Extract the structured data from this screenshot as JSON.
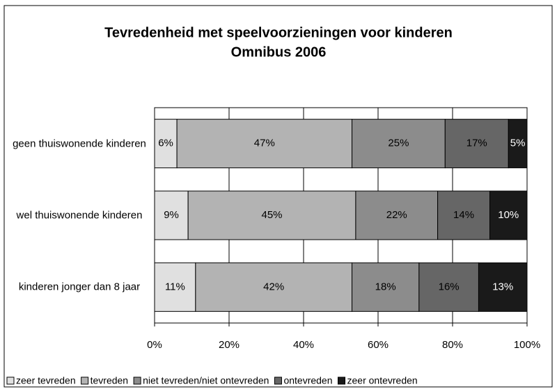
{
  "chart_data": {
    "type": "stacked-bar-horizontal",
    "title": "Tevredenheid met speelvoorzieningen voor kinderen",
    "subtitle": "Omnibus 2006",
    "categories": [
      "geen thuiswonende kinderen",
      "wel thuiswonende kinderen",
      "kinderen jonger dan 8 jaar"
    ],
    "series": [
      {
        "name": "zeer tevreden",
        "color": "#e0e0e0",
        "values": [
          6,
          9,
          11
        ],
        "value_labels": [
          "6%",
          "9%",
          "11%"
        ]
      },
      {
        "name": "tevreden",
        "color": "#b3b3b3",
        "values": [
          47,
          45,
          42
        ],
        "value_labels": [
          "47%",
          "45%",
          "42%"
        ]
      },
      {
        "name": "niet tevreden/niet ontevreden",
        "color": "#8c8c8c",
        "values": [
          25,
          22,
          18
        ],
        "value_labels": [
          "25%",
          "22%",
          "18%"
        ]
      },
      {
        "name": "ontevreden",
        "color": "#666666",
        "values": [
          17,
          14,
          16
        ],
        "value_labels": [
          "17%",
          "14%",
          "16%"
        ]
      },
      {
        "name": "zeer ontevreden",
        "color": "#1a1a1a",
        "values": [
          5,
          10,
          13
        ],
        "value_labels": [
          "5%",
          "10%",
          "13%"
        ]
      }
    ],
    "xlim": [
      0,
      100
    ],
    "xticks": [
      {
        "value": 0,
        "label": "0%"
      },
      {
        "value": 20,
        "label": "20%"
      },
      {
        "value": 40,
        "label": "40%"
      },
      {
        "value": 60,
        "label": "60%"
      },
      {
        "value": 80,
        "label": "80%"
      },
      {
        "value": 100,
        "label": "100%"
      }
    ],
    "grid": true,
    "legend": "bottom"
  }
}
